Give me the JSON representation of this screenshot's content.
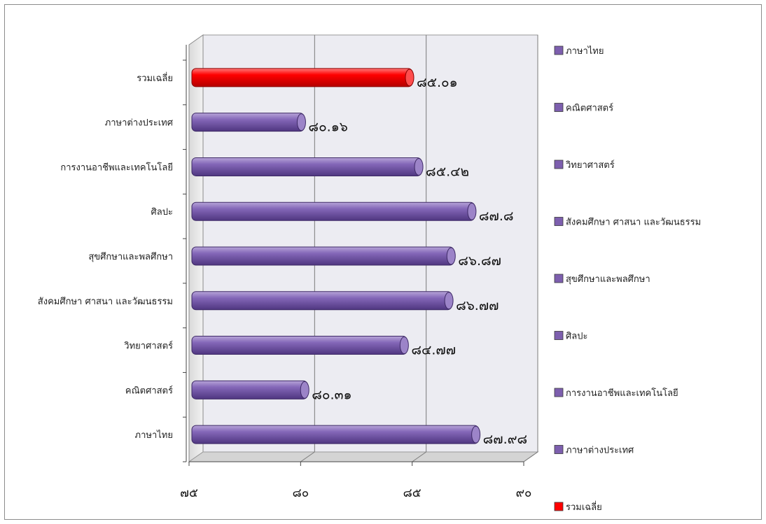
{
  "chart_data": {
    "type": "bar",
    "orientation": "horizontal",
    "title": "",
    "xlabel": "",
    "ylabel": "",
    "xlim": [
      75,
      90
    ],
    "x_ticks": [
      75,
      80,
      85,
      90
    ],
    "x_tick_labels": [
      "๗๕",
      "๘๐",
      "๘๕",
      "๙๐"
    ],
    "grid": true,
    "legend_position": "right",
    "categories": [
      "ภาษาไทย",
      "คณิตศาสตร์",
      "วิทยาศาสตร์",
      "สังคมศึกษา ศาสนา และวัฒนธรรม",
      "สุขศึกษาและพลศึกษา",
      "ศิลปะ",
      "การงานอาชีพและเทคโนโลยี",
      "ภาษาต่างประเทศ",
      "รวมเฉลี่ย"
    ],
    "values": [
      87.98,
      80.31,
      84.77,
      86.77,
      86.87,
      87.8,
      85.42,
      80.16,
      85.01
    ],
    "value_labels": [
      "๘๗.๙๘",
      "๘๐.๓๑",
      "๘๔.๗๗",
      "๘๖.๗๗",
      "๘๖.๘๗",
      "๘๗.๘",
      "๘๕.๔๒",
      "๘๐.๑๖",
      "๘๕.๐๑"
    ],
    "bar_colors": [
      "#7d5fae",
      "#7d5fae",
      "#7d5fae",
      "#7d5fae",
      "#7d5fae",
      "#7d5fae",
      "#7d5fae",
      "#7d5fae",
      "#ff0000"
    ],
    "legend": [
      {
        "label": "ภาษาไทย",
        "color": "#7d5fae"
      },
      {
        "label": "คณิตศาสตร์",
        "color": "#7d5fae"
      },
      {
        "label": "วิทยาศาสตร์",
        "color": "#7d5fae"
      },
      {
        "label": "สังคมศึกษา ศาสนา และวัฒนธรรม",
        "color": "#7d5fae"
      },
      {
        "label": "สุขศึกษาและพลศึกษา",
        "color": "#7d5fae"
      },
      {
        "label": "ศิลปะ",
        "color": "#7d5fae"
      },
      {
        "label": "การงานอาชีพและเทคโนโลยี",
        "color": "#7d5fae"
      },
      {
        "label": "ภาษาต่างประเทศ",
        "color": "#7d5fae"
      },
      {
        "label": "รวมเฉลี่ย",
        "color": "#ff0000"
      }
    ]
  }
}
